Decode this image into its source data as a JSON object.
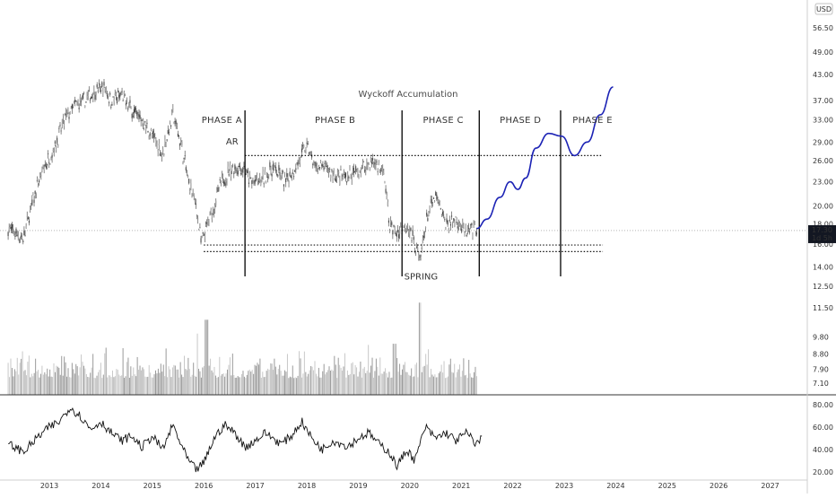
{
  "chart_data": [
    {
      "type": "candlestick",
      "title": "Wyckoff Accumulation",
      "currency": "USD",
      "yscale": "log",
      "ylim": [
        11.5,
        66
      ],
      "y_ticks": [
        12.5,
        14.0,
        16.0,
        18.0,
        20.0,
        23.0,
        26.0,
        29.0,
        33.0,
        37.0,
        43.0,
        49.0,
        56.5
      ],
      "y_tick_labels": [
        "12.50",
        "14.00",
        "16.00",
        "18.00",
        "20.00",
        "23.00",
        "26.00",
        "29.00",
        "33.00",
        "37.00",
        "43.00",
        "49.00",
        "56.50"
      ],
      "x_ticks": [
        "2013",
        "2014",
        "2015",
        "2016",
        "2017",
        "2018",
        "2019",
        "2020",
        "2021",
        "2022",
        "2023",
        "2024",
        "2025",
        "2026",
        "2027"
      ],
      "current_price": 17.3,
      "current_price_label": "17.30",
      "countdown_label": "1d 5h",
      "price_path": [
        [
          2012.2,
          17.5
        ],
        [
          2012.5,
          16.5
        ],
        [
          2012.7,
          21
        ],
        [
          2012.9,
          25
        ],
        [
          2013.1,
          28
        ],
        [
          2013.3,
          33
        ],
        [
          2013.5,
          36
        ],
        [
          2013.7,
          37
        ],
        [
          2013.9,
          39
        ],
        [
          2014.05,
          40
        ],
        [
          2014.2,
          37
        ],
        [
          2014.4,
          38
        ],
        [
          2014.6,
          35
        ],
        [
          2014.8,
          33
        ],
        [
          2015.0,
          30
        ],
        [
          2015.2,
          27
        ],
        [
          2015.4,
          34
        ],
        [
          2015.55,
          29
        ],
        [
          2015.7,
          23
        ],
        [
          2015.85,
          20
        ],
        [
          2015.95,
          16
        ],
        [
          2016.05,
          17.5
        ],
        [
          2016.2,
          20
        ],
        [
          2016.35,
          23
        ],
        [
          2016.55,
          25
        ],
        [
          2016.75,
          25
        ],
        [
          2016.9,
          23
        ],
        [
          2017.1,
          23
        ],
        [
          2017.35,
          25
        ],
        [
          2017.6,
          23
        ],
        [
          2017.85,
          26
        ],
        [
          2018.0,
          28.5
        ],
        [
          2018.15,
          25
        ],
        [
          2018.35,
          25
        ],
        [
          2018.6,
          23.5
        ],
        [
          2018.9,
          24
        ],
        [
          2019.1,
          25
        ],
        [
          2019.3,
          26
        ],
        [
          2019.5,
          24
        ],
        [
          2019.6,
          18
        ],
        [
          2019.75,
          17
        ],
        [
          2019.95,
          18
        ],
        [
          2020.1,
          16
        ],
        [
          2020.2,
          14.5
        ],
        [
          2020.35,
          19
        ],
        [
          2020.5,
          21
        ],
        [
          2020.7,
          18
        ],
        [
          2020.9,
          18.5
        ],
        [
          2021.1,
          17
        ],
        [
          2021.3,
          17.5
        ]
      ],
      "projection": [
        [
          2021.3,
          17.5
        ],
        [
          2021.5,
          18.5
        ],
        [
          2021.75,
          21
        ],
        [
          2021.95,
          23
        ],
        [
          2022.1,
          22
        ],
        [
          2022.25,
          23.5
        ],
        [
          2022.45,
          28
        ],
        [
          2022.7,
          30.5
        ],
        [
          2022.95,
          30
        ],
        [
          2023.2,
          26.8
        ],
        [
          2023.45,
          29
        ],
        [
          2023.7,
          34
        ],
        [
          2023.95,
          40
        ]
      ],
      "range_top": 26.8,
      "range_bottom_1": 15.9,
      "range_bottom_2": 15.3,
      "phase_dividers": [
        2016.8,
        2019.85,
        2021.35,
        2022.93
      ],
      "phases": [
        {
          "label": "PHASE  A",
          "x": 2016.35
        },
        {
          "label": "PHASE B",
          "x": 2018.55
        },
        {
          "label": "PHASE C",
          "x": 2020.65
        },
        {
          "label": "PHASE D",
          "x": 2022.15
        },
        {
          "label": "PHASE E",
          "x": 2023.55
        }
      ],
      "annotations": [
        {
          "label": "AR",
          "x": 2016.55,
          "y": 28.6
        },
        {
          "label": "SPRING",
          "x": 2020.22,
          "y": 13.0
        }
      ],
      "volume_scale": [
        {
          "label": "11.50",
          "value": 11.5
        },
        {
          "label": "9.80",
          "value": 9.8
        },
        {
          "label": "8.80",
          "value": 8.8
        },
        {
          "label": "7.90",
          "value": 7.9
        },
        {
          "label": "7.10",
          "value": 7.1
        }
      ]
    },
    {
      "type": "line",
      "x_range": [
        2012.2,
        2021.4
      ],
      "ylim": [
        17,
        83
      ],
      "y_ticks": [
        20,
        40,
        60,
        80
      ],
      "y_tick_labels": [
        "20.00",
        "40.00",
        "60.00",
        "80.00"
      ],
      "path": [
        [
          2012.2,
          45
        ],
        [
          2012.5,
          38
        ],
        [
          2012.8,
          52
        ],
        [
          2013.0,
          60
        ],
        [
          2013.2,
          65
        ],
        [
          2013.4,
          78
        ],
        [
          2013.6,
          70
        ],
        [
          2013.8,
          58
        ],
        [
          2014.0,
          65
        ],
        [
          2014.2,
          55
        ],
        [
          2014.4,
          48
        ],
        [
          2014.6,
          52
        ],
        [
          2014.8,
          42
        ],
        [
          2015.0,
          52
        ],
        [
          2015.2,
          40
        ],
        [
          2015.4,
          62
        ],
        [
          2015.55,
          45
        ],
        [
          2015.7,
          30
        ],
        [
          2015.85,
          22
        ],
        [
          2016.0,
          28
        ],
        [
          2016.2,
          50
        ],
        [
          2016.4,
          62
        ],
        [
          2016.6,
          55
        ],
        [
          2016.8,
          42
        ],
        [
          2017.0,
          48
        ],
        [
          2017.2,
          55
        ],
        [
          2017.5,
          45
        ],
        [
          2017.7,
          52
        ],
        [
          2017.9,
          65
        ],
        [
          2018.1,
          50
        ],
        [
          2018.3,
          40
        ],
        [
          2018.5,
          48
        ],
        [
          2018.8,
          43
        ],
        [
          2019.0,
          50
        ],
        [
          2019.2,
          55
        ],
        [
          2019.4,
          45
        ],
        [
          2019.6,
          38
        ],
        [
          2019.75,
          25
        ],
        [
          2019.95,
          40
        ],
        [
          2020.1,
          30
        ],
        [
          2020.3,
          60
        ],
        [
          2020.5,
          50
        ],
        [
          2020.7,
          55
        ],
        [
          2020.9,
          48
        ],
        [
          2021.1,
          55
        ],
        [
          2021.3,
          45
        ],
        [
          2021.4,
          50
        ]
      ]
    }
  ]
}
